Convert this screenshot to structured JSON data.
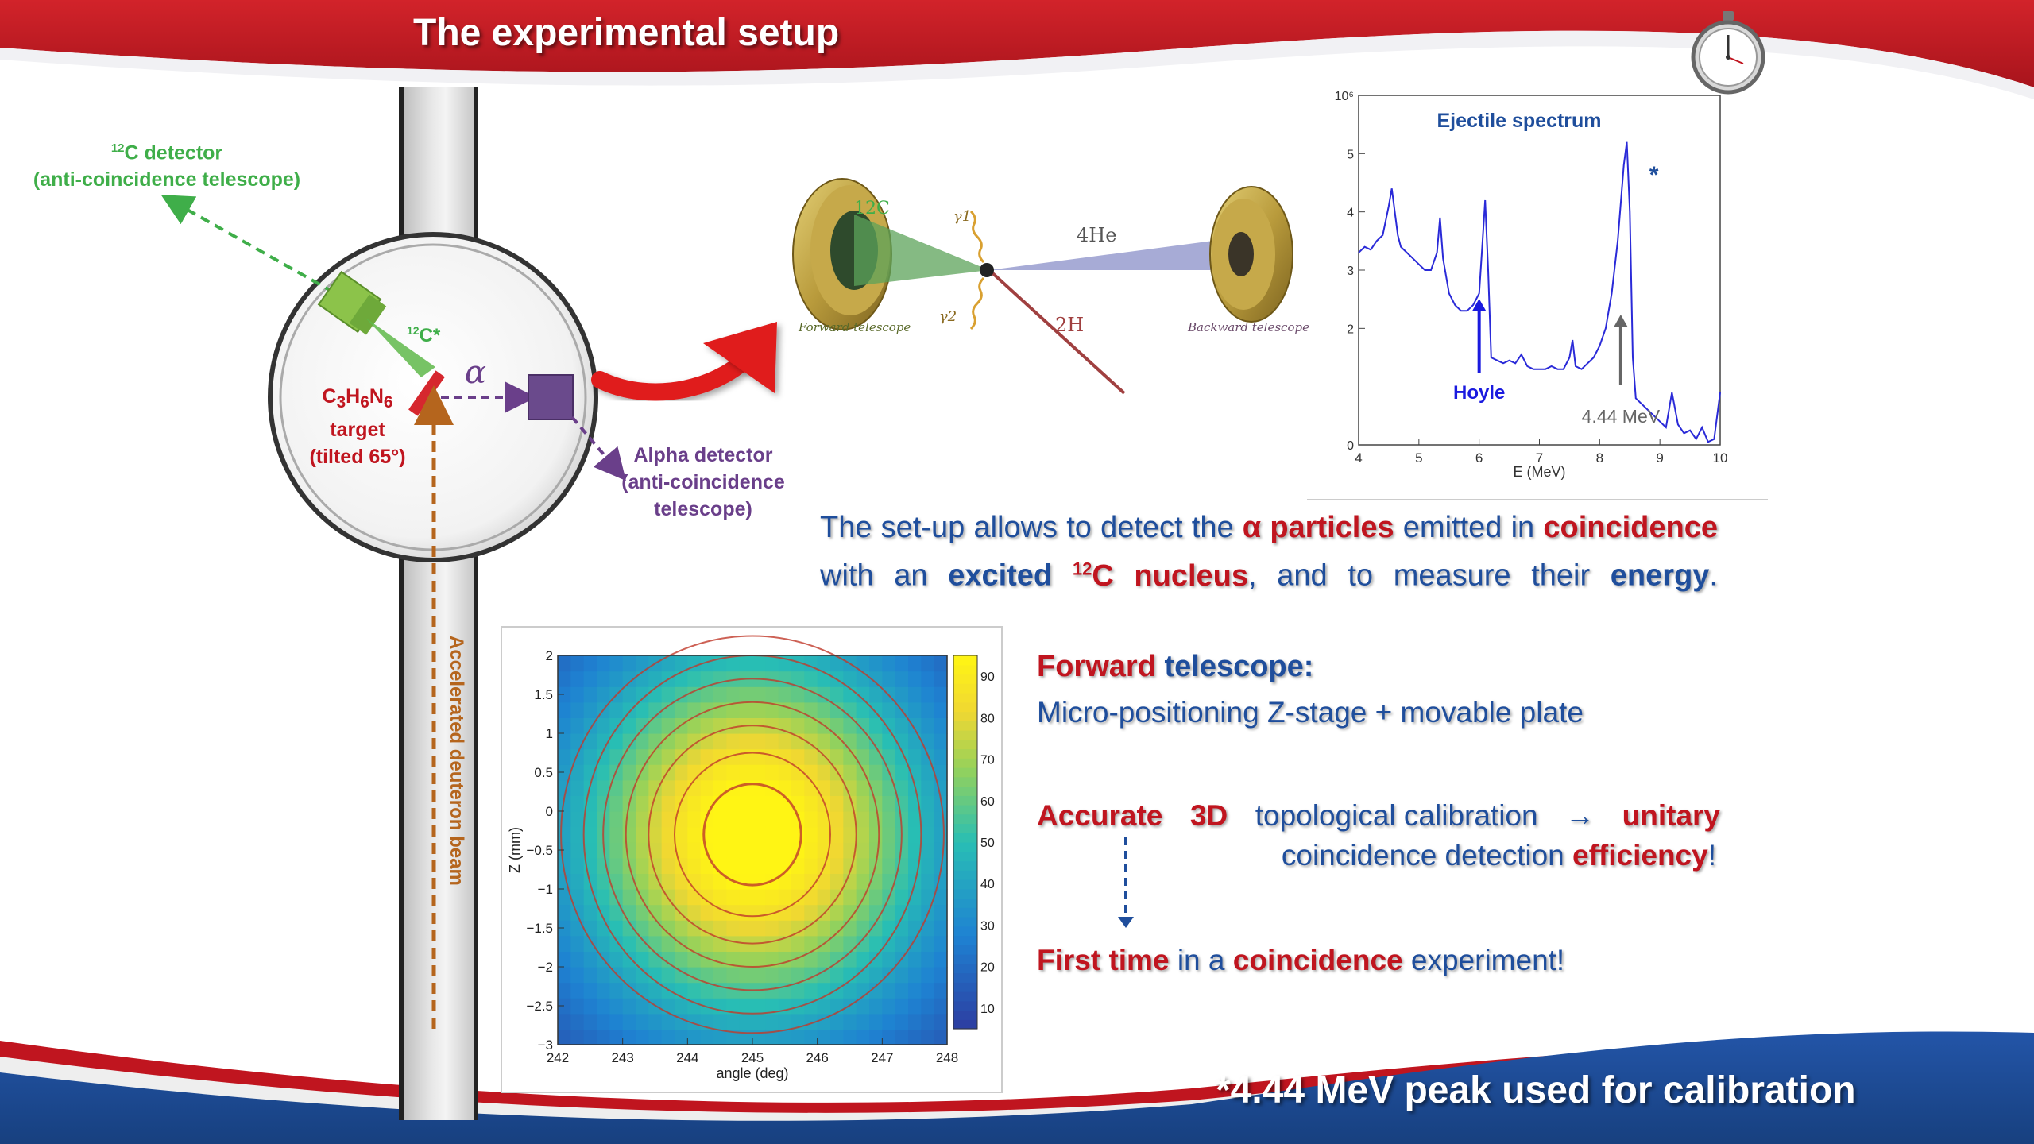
{
  "title": "The experimental setup",
  "footer_note": "*4.44 MeV peak used for calibration",
  "colors": {
    "banner_red": "#c0151f",
    "banner_blue": "#1f4e9c",
    "green": "#3fae49",
    "purple": "#6a3f8a",
    "brown": "#b5651d"
  },
  "icons": {
    "timer": "stopwatch-icon"
  },
  "chamber": {
    "c12_detector_line1": "12C detector",
    "c12_detector_sup": "12",
    "c12_detector_rest": "C detector",
    "c12_detector_line2": "(anti-coincidence telescope)",
    "c12_star_sup": "12",
    "c12_star": "C*",
    "alpha_symbol": "α",
    "target_formula": "C3H6N6",
    "target_line2": "target",
    "target_line3": "(tilted 65°)",
    "alpha_detector_line1": "Alpha detector",
    "alpha_detector_line2": "(anti-coincidence",
    "alpha_detector_line3": "telescope)",
    "beam_label": "Accelerated deuteron beam"
  },
  "telescopes": {
    "forward_label": "Forward telescope",
    "backward_label": "Backward telescope",
    "c12_label": "12C",
    "he4_label": "4He",
    "h2_label": "2H",
    "gamma1": "γ1",
    "gamma2": "γ2"
  },
  "paragraph": {
    "text_1": "The set-up allows to detect the ",
    "alpha_particles": "α particles",
    "text_2": " emitted in ",
    "coincidence": "coincidence",
    "text_3": " with an ",
    "excited": "excited",
    "nucleus_sup": "12",
    "nucleus": "C nucleus",
    "text_4": ", and to measure their ",
    "energy": "energy",
    "text_5": "."
  },
  "notes": {
    "forward_word": "Forward",
    "telescope_word": "telescope:",
    "stage_desc": "Micro-positioning Z-stage + movable plate",
    "accurate": "Accurate",
    "three_d": "3D",
    "topological": "topological calibration",
    "arrow": "→",
    "unitary": "unitary",
    "coinc_detection": "coincidence detection",
    "efficiency": "efficiency",
    "excl": "!",
    "first_time": "First time",
    "in_a": "in a",
    "coincidence_word": "coincidence",
    "experiment": "experiment!"
  },
  "chart_data": [
    {
      "type": "line",
      "title": "Ejectile spectrum",
      "xlabel": "E (MeV)",
      "ylabel": "",
      "xlim": [
        4,
        10
      ],
      "ylim": [
        0,
        6
      ],
      "log_y": true,
      "x_ticks": [
        "4",
        "5",
        "6",
        "7",
        "8",
        "9",
        "10"
      ],
      "y_ticks": [
        "0",
        "2",
        "3",
        "4",
        "5",
        "10⁶"
      ],
      "annotations": [
        {
          "text": "Hoyle",
          "x": 6.0,
          "color": "#1a1adf"
        },
        {
          "text": "4.44 MeV",
          "x": 8.35,
          "color": "#666666"
        },
        {
          "text": "*",
          "x": 8.9
        }
      ],
      "series": [
        {
          "color": "#2a2ad8",
          "x": [
            4.0,
            4.1,
            4.2,
            4.3,
            4.4,
            4.5,
            4.55,
            4.6,
            4.65,
            4.7,
            4.8,
            4.9,
            5.0,
            5.1,
            5.2,
            5.3,
            5.35,
            5.4,
            5.5,
            5.6,
            5.7,
            5.8,
            5.9,
            6.0,
            6.05,
            6.1,
            6.15,
            6.2,
            6.3,
            6.4,
            6.5,
            6.6,
            6.7,
            6.8,
            6.9,
            7.0,
            7.1,
            7.2,
            7.3,
            7.4,
            7.5,
            7.55,
            7.6,
            7.7,
            7.8,
            7.9,
            8.0,
            8.1,
            8.2,
            8.3,
            8.4,
            8.45,
            8.5,
            8.55,
            8.6,
            8.7,
            8.8,
            8.9,
            9.0,
            9.1,
            9.2,
            9.3,
            9.4,
            9.5,
            9.6,
            9.7,
            9.8,
            9.9,
            10.0
          ],
          "y": [
            3.3,
            3.4,
            3.35,
            3.5,
            3.6,
            4.1,
            4.4,
            4.0,
            3.6,
            3.4,
            3.3,
            3.2,
            3.1,
            3.0,
            3.0,
            3.3,
            3.9,
            3.2,
            2.6,
            2.4,
            2.3,
            2.3,
            2.4,
            2.6,
            3.4,
            4.2,
            3.0,
            1.5,
            1.45,
            1.4,
            1.45,
            1.4,
            1.55,
            1.35,
            1.3,
            1.3,
            1.3,
            1.35,
            1.3,
            1.3,
            1.5,
            1.8,
            1.35,
            1.3,
            1.4,
            1.5,
            1.7,
            2.0,
            2.6,
            3.5,
            4.8,
            5.2,
            4.0,
            1.5,
            0.8,
            0.7,
            0.6,
            0.5,
            0.4,
            0.3,
            0.9,
            0.35,
            0.2,
            0.25,
            0.1,
            0.3,
            0.05,
            0.1,
            0.9
          ]
        }
      ]
    },
    {
      "type": "heatmap",
      "xlabel": "angle (deg)",
      "ylabel": "Z (mm)",
      "xlim": [
        242,
        248
      ],
      "ylim": [
        -3,
        2
      ],
      "x_ticks": [
        242,
        243,
        244,
        245,
        246,
        247,
        248
      ],
      "y_ticks": [
        2,
        1.5,
        1,
        0.5,
        0,
        -0.5,
        -1,
        -1.5,
        -2,
        -2.5,
        -3
      ],
      "colorbar_ticks": [
        10,
        20,
        30,
        40,
        50,
        60,
        70,
        80,
        90
      ],
      "peak": {
        "x": 245,
        "z": -0.3,
        "value": 95
      },
      "contours": [
        {
          "level": 90,
          "rx": 0.75,
          "rz": 0.65
        },
        {
          "level": 80,
          "rx": 1.2,
          "rz": 1.05
        },
        {
          "level": 70,
          "rx": 1.6,
          "rz": 1.4
        },
        {
          "level": 60,
          "rx": 1.95,
          "rz": 1.7
        },
        {
          "level": 50,
          "rx": 2.3,
          "rz": 2.0
        },
        {
          "level": 40,
          "rx": 2.6,
          "rz": 2.3
        },
        {
          "level": 30,
          "rx": 2.95,
          "rz": 2.55
        }
      ]
    }
  ]
}
